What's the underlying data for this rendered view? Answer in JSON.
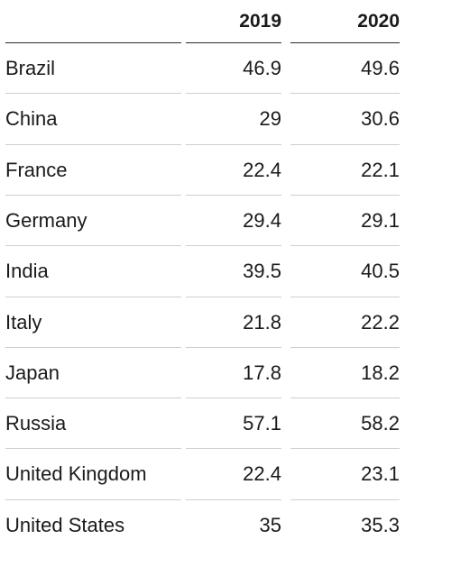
{
  "chart_data": {
    "type": "table",
    "columns": [
      "",
      "2019",
      "2020"
    ],
    "rows": [
      {
        "country": "Brazil",
        "v2019": "46.9",
        "v2020": "49.6"
      },
      {
        "country": "China",
        "v2019": "29",
        "v2020": "30.6"
      },
      {
        "country": "France",
        "v2019": "22.4",
        "v2020": "22.1"
      },
      {
        "country": "Germany",
        "v2019": "29.4",
        "v2020": "29.1"
      },
      {
        "country": "India",
        "v2019": "39.5",
        "v2020": "40.5"
      },
      {
        "country": "Italy",
        "v2019": "21.8",
        "v2020": "22.2"
      },
      {
        "country": "Japan",
        "v2019": "17.8",
        "v2020": "18.2"
      },
      {
        "country": "Russia",
        "v2019": "57.1",
        "v2020": "58.2"
      },
      {
        "country": "United Kingdom",
        "v2019": "22.4",
        "v2020": "23.1"
      },
      {
        "country": "United States",
        "v2019": "35",
        "v2020": "35.3"
      }
    ]
  }
}
